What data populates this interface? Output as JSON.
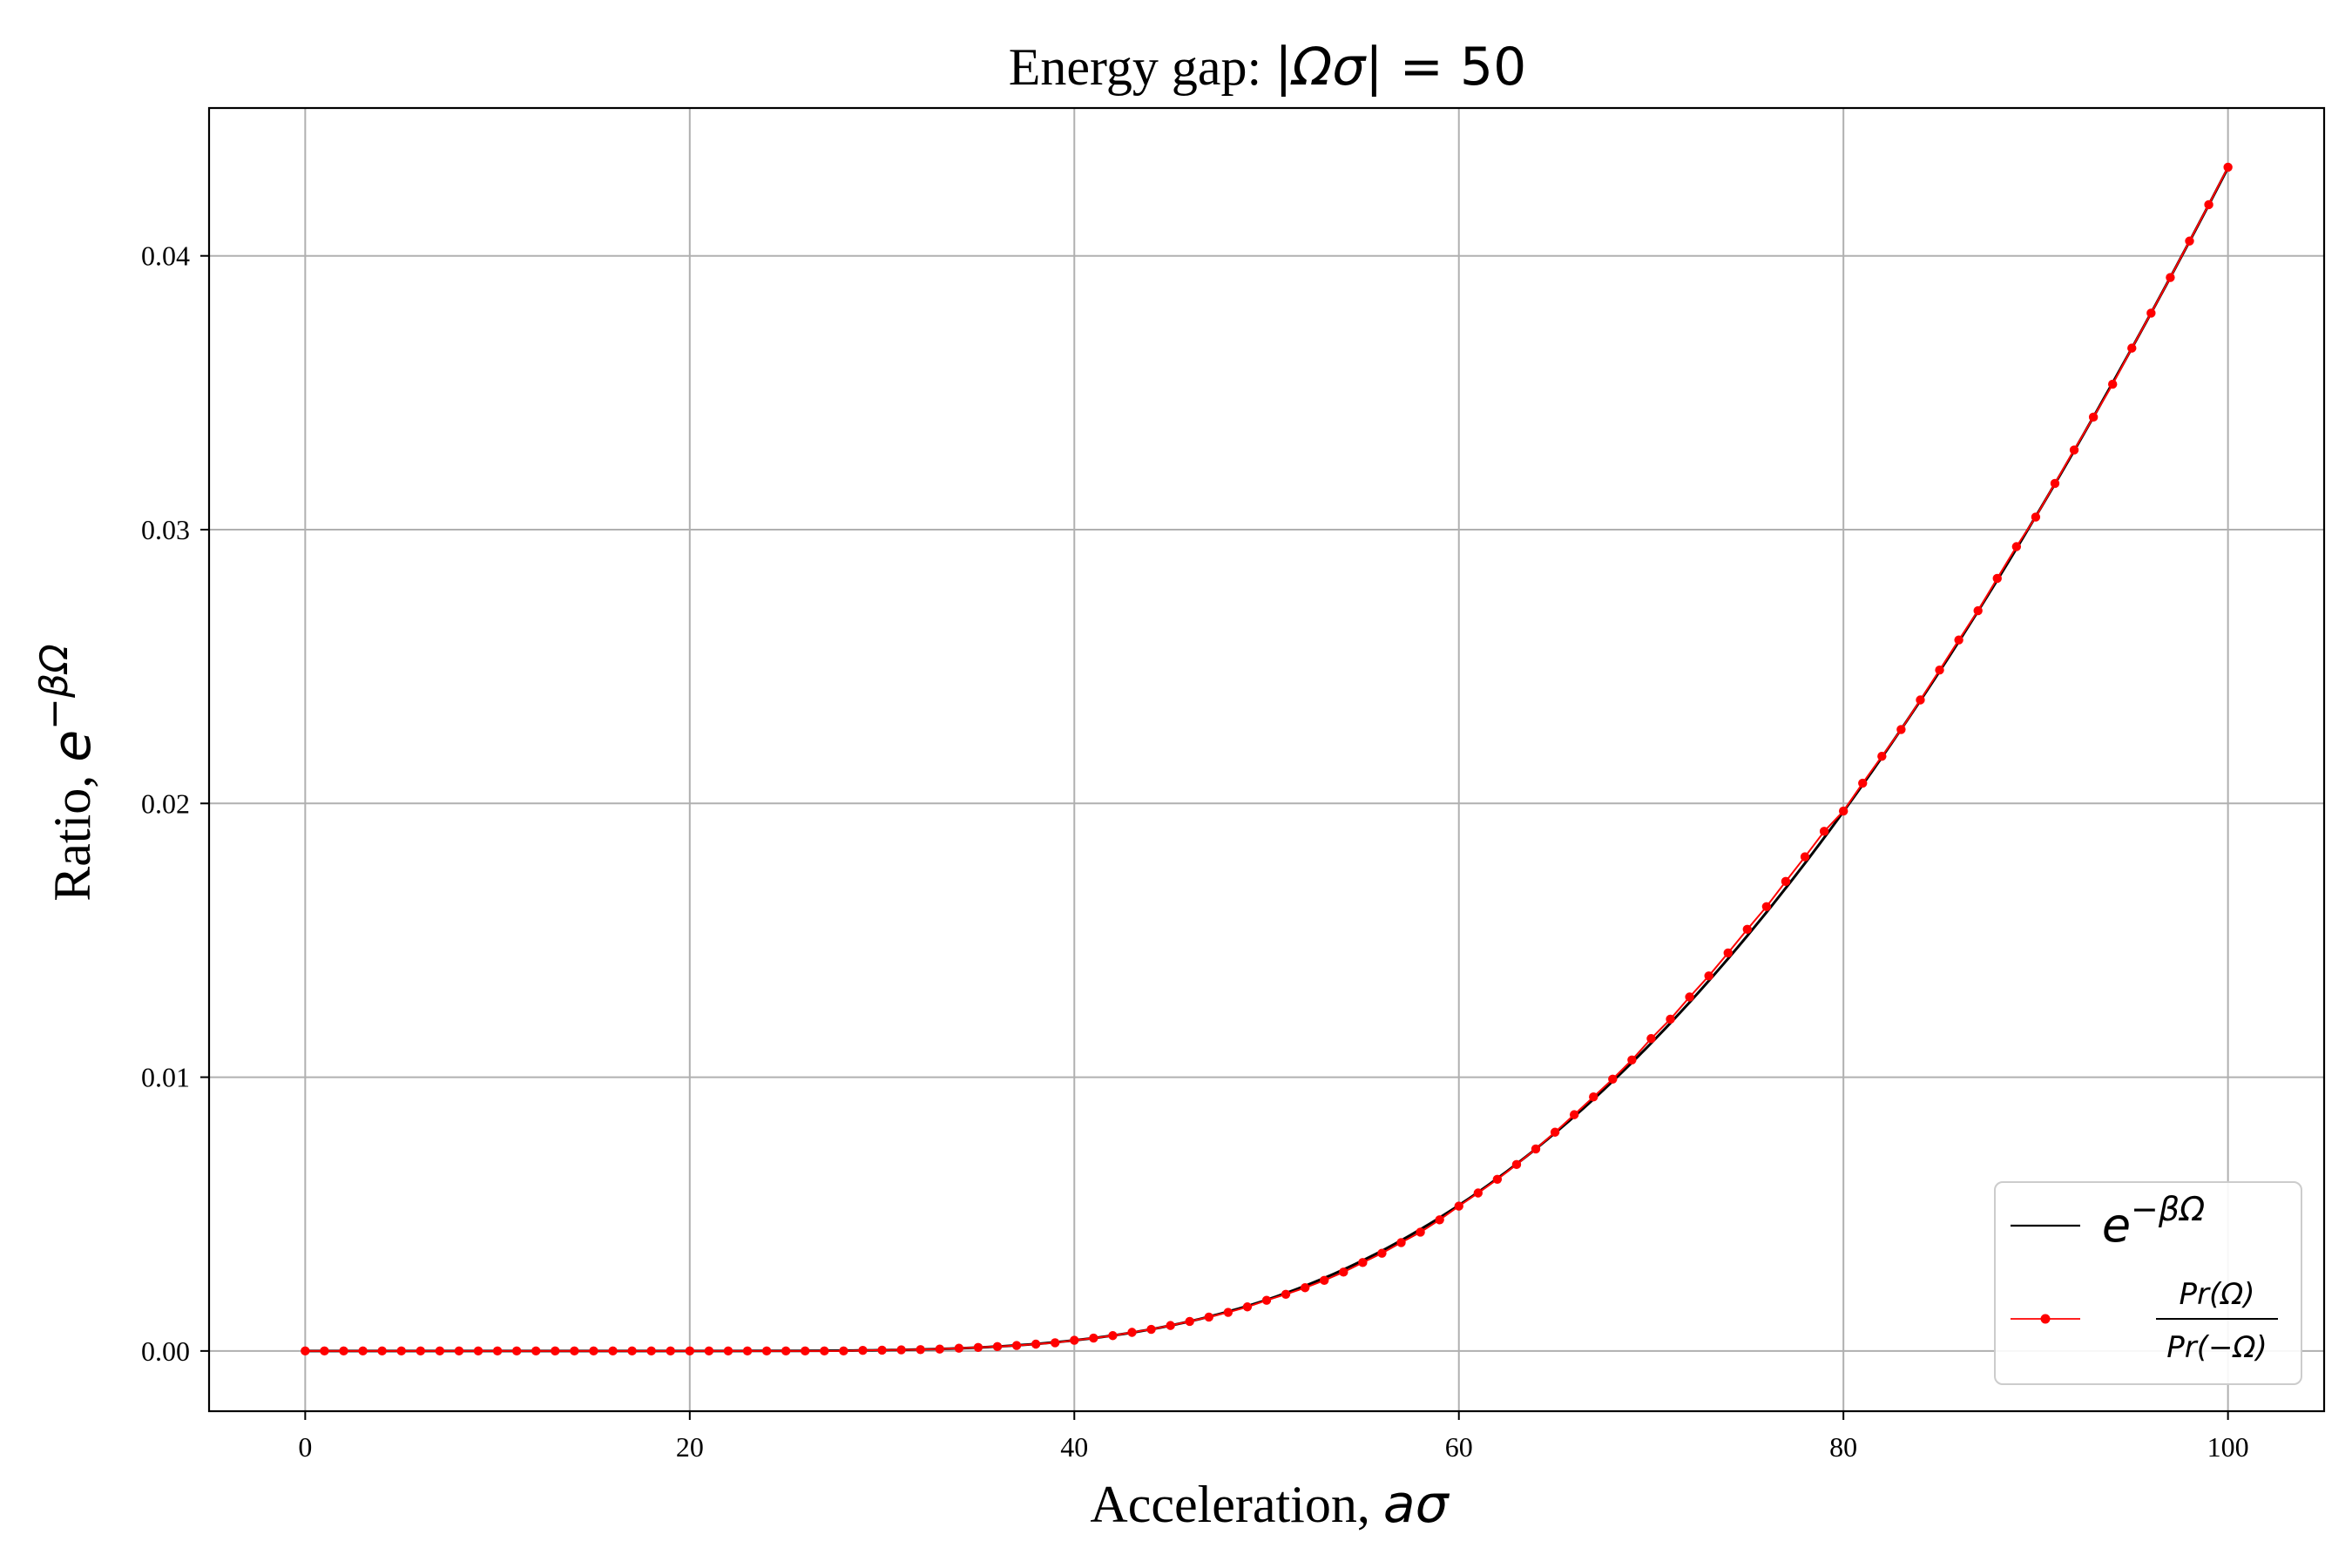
{
  "chart_data": {
    "type": "line",
    "title": {
      "prefix": "Energy gap: ",
      "math_bar1": "|",
      "math_var": "Ωσ",
      "math_rest": "| = 50"
    },
    "xlabel": {
      "text": "Acceleration, ",
      "math": "aσ"
    },
    "ylabel": {
      "text": "Ratio, ",
      "math_base": "e",
      "math_sup": "−βΩ"
    },
    "xlim": [
      -5,
      105
    ],
    "ylim": [
      -0.0022,
      0.0454
    ],
    "xticks": [
      0,
      20,
      40,
      60,
      80,
      100
    ],
    "xtick_labels": [
      "0",
      "20",
      "40",
      "60",
      "80",
      "100"
    ],
    "yticks": [
      0.0,
      0.01,
      0.02,
      0.03,
      0.04
    ],
    "ytick_labels": [
      "0.00",
      "0.01",
      "0.02",
      "0.03",
      "0.04"
    ],
    "grid": true,
    "legend": {
      "placement": "lower-right",
      "entries": [
        {
          "base": "e",
          "sup": "−βΩ"
        },
        {
          "numerator": "Pr(Ω)",
          "denominator": "Pr(−Ω)"
        }
      ]
    },
    "series": [
      {
        "color": "#000000",
        "style": "line",
        "formula": "exp(-2*pi*50/x)",
        "x_range": [
          0,
          100
        ]
      },
      {
        "color": "#ff0000",
        "style": "line-with-markers",
        "x": [
          0,
          1,
          2,
          3,
          4,
          5,
          6,
          7,
          8,
          9,
          10,
          11,
          12,
          13,
          14,
          15,
          16,
          17,
          18,
          19,
          20,
          21,
          22,
          23,
          24,
          25,
          26,
          27,
          28,
          29,
          30,
          31,
          32,
          33,
          34,
          35,
          36,
          37,
          38,
          39,
          40,
          41,
          42,
          43,
          44,
          45,
          46,
          47,
          48,
          49,
          50,
          51,
          52,
          53,
          54,
          55,
          56,
          57,
          58,
          59,
          60,
          61,
          62,
          63,
          64,
          65,
          66,
          67,
          68,
          69,
          70,
          71,
          72,
          73,
          74,
          75,
          76,
          77,
          78,
          79,
          80,
          81,
          82,
          83,
          84,
          85,
          86,
          87,
          88,
          89,
          90,
          91,
          92,
          93,
          94,
          95,
          96,
          97,
          98,
          99,
          100
        ],
        "y": [
          0,
          0,
          0,
          0,
          0,
          0,
          0,
          0,
          0,
          0,
          0,
          0,
          0,
          0,
          0,
          0,
          0,
          0,
          0,
          0,
          0,
          0,
          0,
          0,
          0,
          0,
          0,
          0,
          0,
          2e-05,
          3e-05,
          4e-05,
          5e-05,
          7e-05,
          0.0001,
          0.00013,
          0.00016,
          0.0002,
          0.00025,
          0.0003,
          0.00039,
          0.00047,
          0.00056,
          0.00068,
          0.00079,
          0.00093,
          0.00108,
          0.00124,
          0.00141,
          0.00161,
          0.00185,
          0.00207,
          0.00231,
          0.00258,
          0.00288,
          0.00323,
          0.00357,
          0.00396,
          0.00434,
          0.00479,
          0.00529,
          0.00577,
          0.00627,
          0.00681,
          0.00738,
          0.00799,
          0.00863,
          0.00928,
          0.00993,
          0.01063,
          0.01141,
          0.01212,
          0.01293,
          0.0137,
          0.01454,
          0.0154,
          0.01623,
          0.01715,
          0.01805,
          0.01898,
          0.01972,
          0.02074,
          0.02172,
          0.0227,
          0.02378,
          0.02487,
          0.02597,
          0.02704,
          0.02822,
          0.02938,
          0.03046,
          0.03169,
          0.03291,
          0.03411,
          0.03531,
          0.03663,
          0.03791,
          0.03921,
          0.04054,
          0.04187,
          0.04324
        ]
      }
    ]
  }
}
